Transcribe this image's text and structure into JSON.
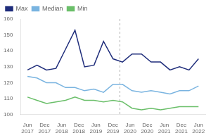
{
  "chart_data": {
    "type": "line",
    "x": [
      0,
      0.5555555555555556,
      1.1111111111111112,
      1.6666666666666667,
      2.2222222222222223,
      2.7777777777777777,
      3.3333333333333335,
      3.8888888888888893,
      4.444444444444445,
      5,
      5.555555555555555,
      6.111111111111112,
      6.666666666666667,
      7.222222222222222,
      7.777777777777779,
      8.333333333333334,
      8.88888888888889,
      9.444444444444445,
      10
    ],
    "xlim": [
      -0.4,
      10.4
    ],
    "xticks": [
      {
        "value": 0,
        "label": "Jun\n2017"
      },
      {
        "value": 1,
        "label": "Dec\n2017"
      },
      {
        "value": 2,
        "label": "Jun\n2018"
      },
      {
        "value": 3,
        "label": "Dec\n2018"
      },
      {
        "value": 4,
        "label": "Jun\n2019"
      },
      {
        "value": 5,
        "label": "Dec\n2019"
      },
      {
        "value": 6,
        "label": "Jun\n2020"
      },
      {
        "value": 7,
        "label": "Dec\n2020"
      },
      {
        "value": 8,
        "label": "Jun\n2021"
      },
      {
        "value": 9,
        "label": "Dec\n2021"
      },
      {
        "value": 10,
        "label": "Jun\n2022"
      }
    ],
    "ylim": [
      100,
      160
    ],
    "yticks": [
      100,
      110,
      120,
      130,
      140,
      150,
      160
    ],
    "grid": false,
    "legend": "top left",
    "series": [
      {
        "name": "Max",
        "color": "#1f2d7b",
        "values": [
          128,
          131,
          128,
          129,
          141,
          153,
          130,
          131,
          146,
          135,
          133,
          138,
          138,
          133,
          133,
          128,
          130,
          128,
          135
        ]
      },
      {
        "name": "Median",
        "color": "#7ab4e0",
        "values": [
          124,
          123,
          120,
          120,
          117,
          117,
          115,
          116,
          114,
          119,
          119,
          115,
          114,
          115,
          114,
          113,
          115,
          115,
          118
        ]
      },
      {
        "name": "Min",
        "color": "#6bbf6a",
        "values": [
          111,
          109,
          107,
          108,
          109,
          111,
          109,
          109,
          108,
          109,
          108,
          104,
          103,
          104,
          103,
          104,
          105,
          105,
          105
        ]
      }
    ],
    "reference_line": {
      "x": 5.4,
      "color": "#b0b0b0",
      "line_style": "dashed"
    }
  }
}
